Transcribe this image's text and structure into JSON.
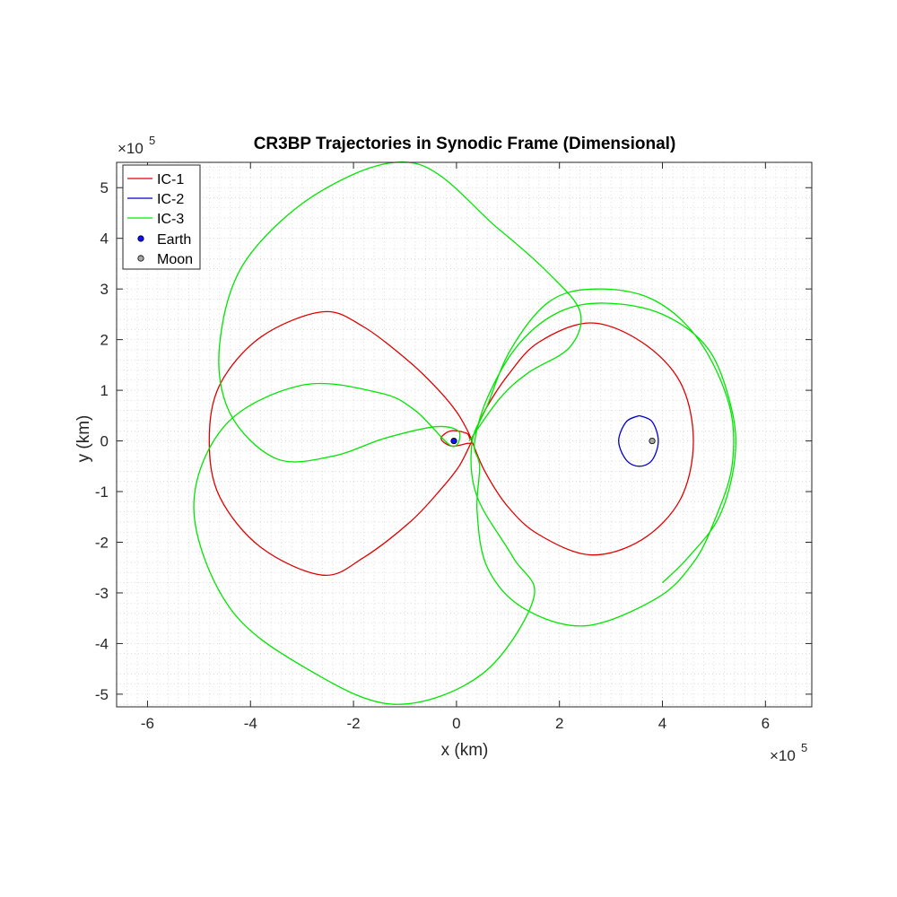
{
  "chart_data": {
    "type": "line",
    "title": "CR3BP Trajectories in Synodic Frame (Dimensional)",
    "xlabel": "x (km)",
    "ylabel": "y (km)",
    "x_exponent": "×10",
    "x_exponent_power": "5",
    "y_exponent": "×10",
    "y_exponent_power": "5",
    "xlim": [
      -6.6,
      6.9
    ],
    "ylim": [
      -5.25,
      5.5
    ],
    "x_ticks": [
      -6,
      -4,
      -2,
      0,
      2,
      4,
      6
    ],
    "x_tick_labels": [
      "-6",
      "-4",
      "-2",
      "0",
      "2",
      "4",
      "6"
    ],
    "y_ticks": [
      -5,
      -4,
      -3,
      -2,
      -1,
      0,
      1,
      2,
      3,
      4,
      5
    ],
    "y_tick_labels": [
      "-5",
      "-4",
      "-3",
      "-2",
      "-1",
      "0",
      "1",
      "2",
      "3",
      "4",
      "5"
    ],
    "minor_grid": true,
    "grid_color": "#c8c8c8",
    "legend_placement": "top-left",
    "series": [
      {
        "name": "IC-1",
        "color": "#e00000",
        "style": "line",
        "points": [
          [
            0.3,
            0
          ],
          [
            0.55,
            -0.6
          ],
          [
            1,
            -1.3
          ],
          [
            1.6,
            -1.85
          ],
          [
            2.6,
            -2.25
          ],
          [
            3.6,
            -1.95
          ],
          [
            4.35,
            -1.15
          ],
          [
            4.6,
            0
          ],
          [
            4.35,
            1.15
          ],
          [
            3.6,
            1.95
          ],
          [
            2.6,
            2.33
          ],
          [
            1.6,
            1.95
          ],
          [
            1,
            1.3
          ],
          [
            0.55,
            0.6
          ],
          [
            0.3,
            0.05
          ],
          [
            0.2,
            0.15
          ],
          [
            -0.1,
            0.2
          ],
          [
            -0.3,
            0.05
          ],
          [
            -0.1,
            -0.1
          ],
          [
            0.2,
            -0.05
          ],
          [
            0.3,
            0
          ],
          [
            0.05,
            0.5
          ],
          [
            -0.3,
            0.95
          ],
          [
            -0.9,
            1.55
          ],
          [
            -1.8,
            2.25
          ],
          [
            -2.6,
            2.55
          ],
          [
            -3.8,
            2.05
          ],
          [
            -4.6,
            1.1
          ],
          [
            -4.8,
            0
          ],
          [
            -4.6,
            -1.1
          ],
          [
            -3.8,
            -2.1
          ],
          [
            -2.6,
            -2.65
          ],
          [
            -1.8,
            -2.3
          ],
          [
            -0.9,
            -1.6
          ],
          [
            -0.3,
            -0.95
          ],
          [
            0.05,
            -0.5
          ],
          [
            0.3,
            0
          ]
        ]
      },
      {
        "name": "IC-2",
        "color": "#0000cc",
        "style": "line",
        "points": [
          [
            3.55,
            0.5
          ],
          [
            3.3,
            0.38
          ],
          [
            3.15,
            0
          ],
          [
            3.3,
            -0.38
          ],
          [
            3.55,
            -0.5
          ],
          [
            3.8,
            -0.38
          ],
          [
            3.92,
            0
          ],
          [
            3.8,
            0.38
          ],
          [
            3.55,
            0.5
          ]
        ]
      },
      {
        "name": "IC-3",
        "color": "#00e600",
        "style": "line",
        "points": [
          [
            0.25,
            0
          ],
          [
            0.85,
            0.85
          ],
          [
            1.4,
            1.35
          ],
          [
            2.2,
            1.85
          ],
          [
            2.4,
            2.55
          ],
          [
            1.8,
            3.3
          ],
          [
            0.8,
            4.2
          ],
          [
            -0.8,
            5.48
          ],
          [
            -2.6,
            4.95
          ],
          [
            -4.1,
            3.55
          ],
          [
            -4.6,
            1.9
          ],
          [
            -4.4,
            0.55
          ],
          [
            -3.5,
            -0.35
          ],
          [
            -2.4,
            -0.3
          ],
          [
            -1.4,
            0.05
          ],
          [
            -0.4,
            0.28
          ],
          [
            0.05,
            0.18
          ],
          [
            -0.1,
            -0.1
          ],
          [
            -0.8,
            0.6
          ],
          [
            -1.5,
            0.95
          ],
          [
            -3,
            1.1
          ],
          [
            -4.5,
            0.3
          ],
          [
            -5.1,
            -1.35
          ],
          [
            -4.4,
            -3.3
          ],
          [
            -2.9,
            -4.5
          ],
          [
            -1.2,
            -5.2
          ],
          [
            0.5,
            -4.6
          ],
          [
            1.5,
            -3.1
          ],
          [
            1.1,
            -2.3
          ],
          [
            0.4,
            -1.1
          ],
          [
            0.3,
            -0.05
          ],
          [
            0.6,
            0.7
          ],
          [
            1.05,
            1.8
          ],
          [
            1.8,
            2.75
          ],
          [
            2.7,
            3
          ],
          [
            3.8,
            2.8
          ],
          [
            4.7,
            2
          ],
          [
            5.3,
            0.7
          ],
          [
            5.35,
            -0.5
          ],
          [
            5,
            -1.6
          ],
          [
            4.6,
            -2.4
          ],
          [
            3.9,
            -3.1
          ],
          [
            2.5,
            -3.65
          ],
          [
            1.3,
            -3.3
          ],
          [
            0.6,
            -2.5
          ],
          [
            0.4,
            -1.4
          ],
          [
            0.45,
            -0.5
          ],
          [
            0.35,
            -0.05
          ],
          [
            0.6,
            0.85
          ],
          [
            1.2,
            1.9
          ],
          [
            2.0,
            2.55
          ],
          [
            2.9,
            2.72
          ],
          [
            4.0,
            2.5
          ],
          [
            4.9,
            1.8
          ],
          [
            5.35,
            0.6
          ],
          [
            5.4,
            -0.4
          ],
          [
            5.1,
            -1.5
          ],
          [
            4.5,
            -2.3
          ],
          [
            4.0,
            -2.8
          ]
        ]
      },
      {
        "name": "Earth",
        "color": "#0000ff",
        "style": "marker",
        "marker_face": "#1010ff",
        "marker_edge": "#000000",
        "points": [
          [
            -0.05,
            0
          ]
        ]
      },
      {
        "name": "Moon",
        "color": "#a0a0a0",
        "style": "marker",
        "marker_face": "#a6a6a6",
        "marker_edge": "#000000",
        "points": [
          [
            3.8,
            0
          ]
        ]
      }
    ]
  }
}
